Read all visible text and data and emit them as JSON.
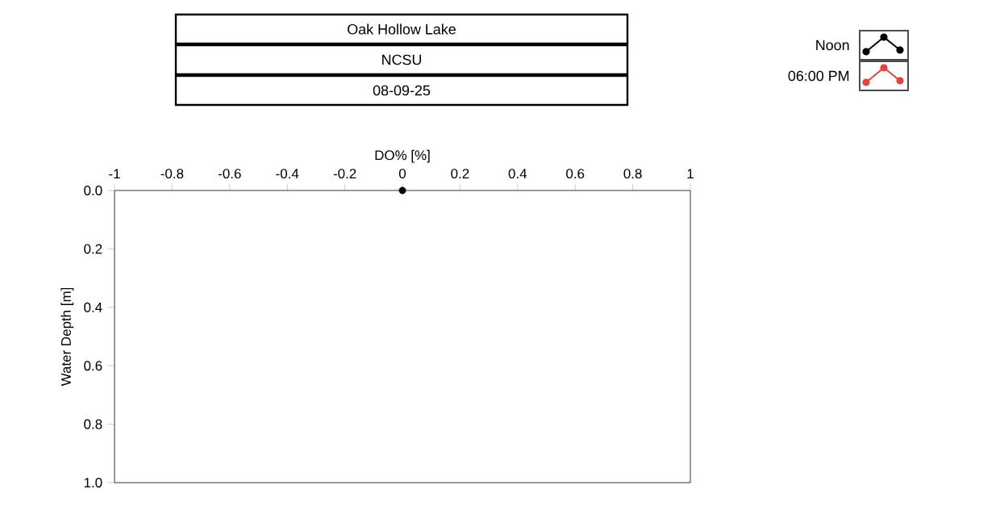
{
  "chart_data": {
    "type": "line",
    "title": "Oak Hollow Lake",
    "subtitle": "NCSU",
    "annotations": [
      "08-09-25"
    ],
    "xlabel": "DO% [%]",
    "ylabel": "Water Depth [m]",
    "xlim": [
      -1,
      1
    ],
    "xticks": [
      -1,
      -0.8,
      -0.6,
      -0.4,
      -0.2,
      0,
      0.2,
      0.4,
      0.6,
      0.8,
      1
    ],
    "ylim": [
      1,
      0
    ],
    "yticks": [
      {
        "value": 0,
        "label": "0.0"
      },
      {
        "value": 0.2,
        "label": "0.2"
      },
      {
        "value": 0.4,
        "label": "0.4"
      },
      {
        "value": 0.6,
        "label": "0.6"
      },
      {
        "value": 0.8,
        "label": "0.8"
      },
      {
        "value": 1,
        "label": "1.0"
      }
    ],
    "series": [
      {
        "name": "Noon",
        "color": "#000000",
        "x": [
          0
        ],
        "values": [
          0
        ]
      },
      {
        "name": "06:00 PM",
        "color": "#e8423f",
        "x": [
          0
        ],
        "values": [
          0
        ]
      }
    ],
    "marker": "circle",
    "line_style": "solid",
    "legend": "top right",
    "grid": false
  }
}
